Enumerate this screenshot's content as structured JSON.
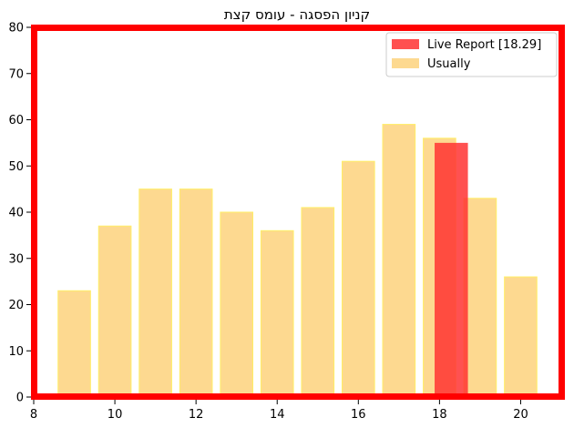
{
  "chart_data": {
    "type": "bar",
    "title": "קניון הפסגה - עומס קצת",
    "xlabel": "",
    "ylabel": "",
    "xlim": [
      8,
      21
    ],
    "ylim": [
      0,
      80
    ],
    "xticks": [
      8,
      10,
      12,
      14,
      16,
      18,
      20
    ],
    "yticks": [
      0,
      10,
      20,
      30,
      40,
      50,
      60,
      70,
      80
    ],
    "legend_position": "top-right",
    "series": [
      {
        "name": "Usually",
        "color": "#fdd990",
        "edge_color": "#ffee66",
        "x": [
          9,
          10,
          11,
          12,
          13,
          14,
          15,
          16,
          17,
          18,
          19,
          20
        ],
        "values": [
          23,
          37,
          45,
          45,
          40,
          36,
          41,
          51,
          59,
          56,
          43,
          26
        ]
      },
      {
        "name": "Live Report [18.29]",
        "color": "#ff3333",
        "x": [
          18.29
        ],
        "values": [
          55
        ]
      }
    ],
    "frame_color": "#ff0000"
  }
}
